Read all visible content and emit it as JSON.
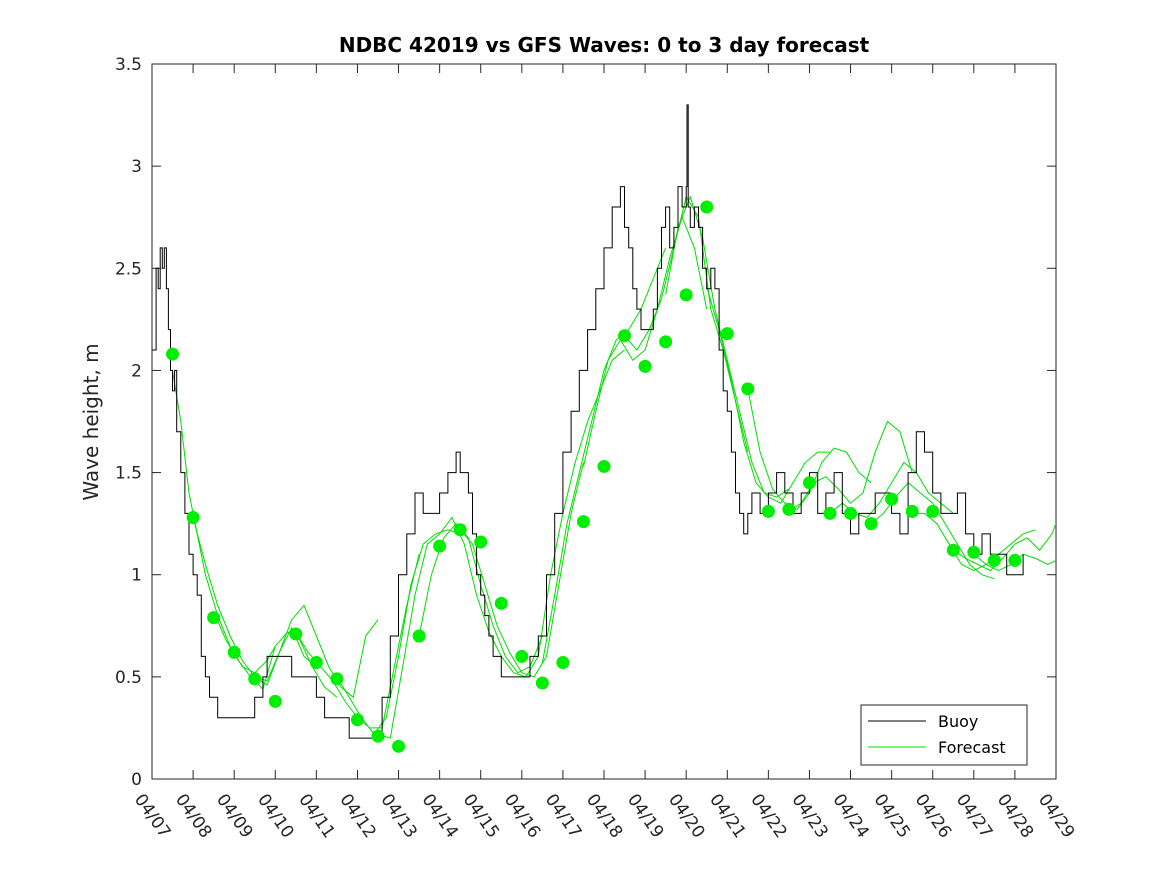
{
  "chart_data": {
    "type": "line",
    "title": "NDBC 42019 vs GFS Waves: 0 to 3 day forecast",
    "xlabel": "",
    "ylabel": "Wave height, m",
    "ylim": [
      0,
      3.5
    ],
    "yticks": [
      0,
      0.5,
      1,
      1.5,
      2,
      2.5,
      3,
      3.5
    ],
    "ytick_labels": [
      "0",
      "0.5",
      "1",
      "1.5",
      "2",
      "2.5",
      "3",
      "3.5"
    ],
    "xlim": [
      0,
      22
    ],
    "xtick_labels": [
      "04/07",
      "04/08",
      "04/09",
      "04/10",
      "04/11",
      "04/12",
      "04/13",
      "04/14",
      "04/15",
      "04/16",
      "04/17",
      "04/18",
      "04/19",
      "04/20",
      "04/21",
      "04/22",
      "04/23",
      "04/24",
      "04/25",
      "04/26",
      "04/27",
      "04/28",
      "04/29"
    ],
    "x_unit_note": "x values are days after 04/07 00:00",
    "legend": {
      "position": "bottom-right",
      "entries": [
        {
          "label": "Buoy",
          "color": "#000000"
        },
        {
          "label": "Forecast",
          "color": "#00dd00"
        }
      ]
    },
    "series": [
      {
        "name": "Buoy",
        "color": "#000000",
        "x": [
          0,
          0.1,
          0.15,
          0.2,
          0.25,
          0.3,
          0.35,
          0.4,
          0.45,
          0.5,
          0.55,
          0.6,
          0.7,
          0.8,
          0.9,
          1.0,
          1.1,
          1.2,
          1.3,
          1.4,
          1.5,
          1.6,
          1.7,
          1.8,
          1.9,
          2.0,
          2.2,
          2.4,
          2.5,
          2.6,
          2.7,
          2.8,
          3.0,
          3.2,
          3.4,
          3.5,
          3.6,
          3.8,
          4.0,
          4.2,
          4.4,
          4.6,
          4.8,
          5.0,
          5.2,
          5.4,
          5.6,
          5.8,
          6.0,
          6.2,
          6.4,
          6.6,
          6.8,
          7.0,
          7.2,
          7.4,
          7.5,
          7.6,
          7.7,
          7.8,
          7.9,
          8.0,
          8.1,
          8.2,
          8.3,
          8.4,
          8.5,
          8.6,
          8.8,
          9.0,
          9.2,
          9.4,
          9.6,
          9.8,
          10.0,
          10.2,
          10.4,
          10.6,
          10.8,
          11.0,
          11.2,
          11.4,
          11.5,
          11.6,
          11.7,
          11.8,
          11.9,
          12.0,
          12.1,
          12.2,
          12.3,
          12.4,
          12.5,
          12.6,
          12.7,
          12.8,
          12.9,
          13.0,
          13.02,
          13.05,
          13.1,
          13.2,
          13.3,
          13.4,
          13.5,
          13.6,
          13.7,
          13.8,
          13.9,
          14.0,
          14.1,
          14.2,
          14.3,
          14.4,
          14.5,
          14.6,
          14.8,
          15.0,
          15.2,
          15.4,
          15.6,
          15.8,
          16.0,
          16.2,
          16.4,
          16.6,
          16.8,
          17.0,
          17.2,
          17.4,
          17.6,
          17.8,
          18.0,
          18.2,
          18.4,
          18.6,
          18.8,
          19.0,
          19.2,
          19.4,
          19.6,
          19.8,
          20.0,
          20.2,
          20.4,
          20.6,
          20.8,
          21.0,
          21.2
        ],
        "y": [
          2.1,
          2.5,
          2.4,
          2.6,
          2.5,
          2.6,
          2.4,
          2.2,
          2.0,
          1.9,
          2.0,
          1.7,
          1.5,
          1.3,
          1.1,
          1.0,
          0.9,
          0.6,
          0.5,
          0.4,
          0.4,
          0.3,
          0.3,
          0.3,
          0.3,
          0.3,
          0.3,
          0.3,
          0.4,
          0.4,
          0.5,
          0.6,
          0.6,
          0.6,
          0.5,
          0.5,
          0.5,
          0.5,
          0.4,
          0.3,
          0.3,
          0.3,
          0.2,
          0.2,
          0.2,
          0.2,
          0.4,
          0.7,
          1.0,
          1.2,
          1.4,
          1.3,
          1.3,
          1.4,
          1.5,
          1.6,
          1.5,
          1.5,
          1.4,
          1.2,
          1.0,
          0.9,
          0.8,
          0.7,
          0.6,
          0.6,
          0.5,
          0.5,
          0.5,
          0.5,
          0.6,
          0.7,
          1.0,
          1.3,
          1.6,
          1.8,
          2.0,
          2.2,
          2.4,
          2.6,
          2.8,
          2.9,
          2.7,
          2.6,
          2.4,
          2.3,
          2.2,
          2.2,
          2.2,
          2.3,
          2.5,
          2.7,
          2.8,
          2.6,
          2.7,
          2.9,
          2.8,
          2.9,
          3.3,
          2.8,
          2.7,
          2.8,
          2.7,
          2.5,
          2.4,
          2.5,
          2.4,
          2.1,
          1.9,
          1.8,
          1.6,
          1.4,
          1.3,
          1.2,
          1.3,
          1.4,
          1.3,
          1.4,
          1.5,
          1.4,
          1.3,
          1.4,
          1.5,
          1.3,
          1.4,
          1.5,
          1.3,
          1.2,
          1.3,
          1.3,
          1.4,
          1.4,
          1.3,
          1.2,
          1.5,
          1.7,
          1.6,
          1.4,
          1.3,
          1.3,
          1.4,
          1.2,
          1.1,
          1.2,
          1.1,
          1.1,
          1.0,
          1.0,
          1.1
        ]
      }
    ],
    "forecast_lines": [
      {
        "x": [
          0.5,
          0.7,
          0.9,
          1.1,
          1.3,
          1.6,
          1.9,
          2.2,
          2.5,
          2.8,
          3.0
        ],
        "y": [
          2.0,
          1.75,
          1.4,
          1.2,
          1.0,
          0.8,
          0.65,
          0.55,
          0.52,
          0.58,
          0.65
        ]
      },
      {
        "x": [
          1.0,
          1.3,
          1.6,
          1.9,
          2.2,
          2.5,
          2.8,
          3.1,
          3.4,
          3.7,
          4.0
        ],
        "y": [
          1.28,
          1.05,
          0.85,
          0.7,
          0.58,
          0.5,
          0.48,
          0.62,
          0.74,
          0.6,
          0.55
        ]
      },
      {
        "x": [
          1.5,
          1.8,
          2.1,
          2.4,
          2.7,
          3.0,
          3.3,
          3.6,
          3.9,
          4.2,
          4.5
        ],
        "y": [
          0.82,
          0.68,
          0.58,
          0.5,
          0.44,
          0.65,
          0.72,
          0.68,
          0.55,
          0.45,
          0.4
        ]
      },
      {
        "x": [
          2.5,
          2.8,
          3.1,
          3.4,
          3.7,
          4.0,
          4.3,
          4.6,
          4.9,
          5.2,
          5.5
        ],
        "y": [
          0.5,
          0.46,
          0.62,
          0.78,
          0.85,
          0.7,
          0.55,
          0.45,
          0.4,
          0.7,
          0.78
        ]
      },
      {
        "x": [
          3.5,
          3.8,
          4.1,
          4.4,
          4.7,
          5.0,
          5.3,
          5.6,
          5.9,
          6.2,
          6.5
        ],
        "y": [
          0.72,
          0.62,
          0.55,
          0.48,
          0.38,
          0.3,
          0.25,
          0.25,
          0.55,
          0.85,
          1.1
        ]
      },
      {
        "x": [
          4.5,
          4.8,
          5.1,
          5.4,
          5.7,
          6.0,
          6.3,
          6.6,
          6.9,
          7.2,
          7.5
        ],
        "y": [
          0.5,
          0.4,
          0.3,
          0.22,
          0.3,
          0.6,
          0.95,
          1.15,
          1.2,
          1.22,
          1.2
        ]
      },
      {
        "x": [
          5.5,
          5.8,
          6.1,
          6.4,
          6.7,
          7.0,
          7.3,
          7.6,
          7.9,
          8.2,
          8.5
        ],
        "y": [
          0.22,
          0.2,
          0.55,
          0.9,
          1.15,
          1.2,
          1.28,
          1.15,
          0.9,
          0.72,
          0.6
        ]
      },
      {
        "x": [
          6.5,
          6.8,
          7.1,
          7.4,
          7.7,
          8.0,
          8.3,
          8.6,
          8.9,
          9.2,
          9.5
        ],
        "y": [
          0.7,
          1.0,
          1.18,
          1.25,
          1.18,
          0.95,
          0.75,
          0.6,
          0.52,
          0.55,
          0.7
        ]
      },
      {
        "x": [
          7.5,
          7.8,
          8.1,
          8.4,
          8.7,
          9.0,
          9.3,
          9.6,
          9.9,
          10.2,
          10.5
        ],
        "y": [
          1.22,
          1.15,
          0.95,
          0.75,
          0.62,
          0.52,
          0.5,
          0.6,
          0.95,
          1.3,
          1.55
        ]
      },
      {
        "x": [
          8.5,
          8.8,
          9.1,
          9.4,
          9.7,
          10.0,
          10.3,
          10.6,
          10.9,
          11.2,
          11.5
        ],
        "y": [
          0.6,
          0.52,
          0.5,
          0.6,
          1.0,
          1.3,
          1.55,
          1.75,
          1.9,
          2.05,
          2.1
        ]
      },
      {
        "x": [
          9.5,
          9.8,
          10.1,
          10.4,
          10.7,
          11.0,
          11.3,
          11.6,
          11.9,
          12.2,
          12.5
        ],
        "y": [
          0.57,
          0.9,
          1.25,
          1.5,
          1.75,
          2.0,
          2.15,
          2.2,
          2.3,
          2.45,
          2.6
        ]
      },
      {
        "x": [
          10.5,
          10.8,
          11.1,
          11.4,
          11.7,
          12.0,
          12.3,
          12.6,
          12.9,
          13.2,
          13.5
        ],
        "y": [
          1.53,
          1.8,
          2.05,
          2.15,
          2.05,
          2.1,
          2.3,
          2.55,
          2.75,
          2.6,
          2.3
        ]
      },
      {
        "x": [
          11.5,
          11.8,
          12.1,
          12.4,
          12.7,
          13.0,
          13.3,
          13.6,
          13.9,
          14.2,
          14.5
        ],
        "y": [
          2.17,
          2.1,
          2.2,
          2.35,
          2.6,
          2.85,
          2.75,
          2.3,
          2.1,
          1.85,
          1.6
        ]
      },
      {
        "x": [
          12.5,
          12.8,
          13.1,
          13.4,
          13.7,
          14.0,
          14.3,
          14.6,
          14.9,
          15.2,
          15.5
        ],
        "y": [
          2.37,
          2.7,
          2.85,
          2.65,
          2.3,
          2.05,
          1.8,
          1.55,
          1.4,
          1.38,
          1.42
        ]
      },
      {
        "x": [
          13.5,
          13.8,
          14.1,
          14.4,
          14.7,
          15.0,
          15.3,
          15.6,
          15.9,
          16.2,
          16.5
        ],
        "y": [
          2.41,
          2.2,
          1.95,
          1.65,
          1.45,
          1.38,
          1.35,
          1.45,
          1.55,
          1.6,
          1.6
        ]
      },
      {
        "x": [
          14.5,
          14.8,
          15.1,
          15.4,
          15.7,
          16.0,
          16.3,
          16.6,
          16.9,
          17.2,
          17.5
        ],
        "y": [
          1.91,
          1.6,
          1.42,
          1.35,
          1.32,
          1.4,
          1.55,
          1.62,
          1.6,
          1.5,
          1.45
        ]
      },
      {
        "x": [
          15.5,
          15.8,
          16.1,
          16.4,
          16.7,
          17.0,
          17.3,
          17.6,
          17.9,
          18.2,
          18.5
        ],
        "y": [
          1.31,
          1.35,
          1.45,
          1.48,
          1.42,
          1.35,
          1.4,
          1.6,
          1.75,
          1.7,
          1.5
        ]
      },
      {
        "x": [
          16.5,
          16.8,
          17.1,
          17.4,
          17.7,
          18.0,
          18.3,
          18.6,
          18.9,
          19.2,
          19.5
        ],
        "y": [
          1.3,
          1.35,
          1.3,
          1.28,
          1.35,
          1.45,
          1.55,
          1.5,
          1.4,
          1.35,
          1.3
        ]
      },
      {
        "x": [
          17.5,
          17.8,
          18.1,
          18.4,
          18.7,
          19.0,
          19.3,
          19.6,
          19.9,
          20.2,
          20.5
        ],
        "y": [
          1.25,
          1.3,
          1.38,
          1.45,
          1.4,
          1.35,
          1.25,
          1.15,
          1.05,
          1.0,
          0.98
        ]
      },
      {
        "x": [
          18.5,
          18.8,
          19.1,
          19.4,
          19.7,
          20.0,
          20.3,
          20.6,
          20.9,
          21.2,
          21.5
        ],
        "y": [
          1.3,
          1.3,
          1.25,
          1.15,
          1.05,
          1.02,
          1.05,
          1.1,
          1.15,
          1.2,
          1.22
        ]
      },
      {
        "x": [
          19.5,
          19.8,
          20.1,
          20.4,
          20.7,
          21.0,
          21.3,
          21.6,
          21.9,
          22.0
        ],
        "y": [
          1.12,
          1.08,
          1.05,
          1.02,
          1.08,
          1.15,
          1.18,
          1.12,
          1.2,
          1.25
        ]
      },
      {
        "x": [
          20.0,
          20.3,
          20.6,
          20.9,
          21.2,
          21.5,
          21.8,
          22.0
        ],
        "y": [
          1.1,
          1.05,
          1.02,
          1.05,
          1.1,
          1.08,
          1.05,
          1.07
        ]
      }
    ],
    "forecast_points": {
      "name": "Forecast",
      "color": "#00ee00",
      "x": [
        0.5,
        1.0,
        1.5,
        2.0,
        2.5,
        3.0,
        3.5,
        4.0,
        4.5,
        5.0,
        5.5,
        6.0,
        6.5,
        7.0,
        7.5,
        8.0,
        8.5,
        9.0,
        9.5,
        10.0,
        10.5,
        11.0,
        11.5,
        12.0,
        12.5,
        13.0,
        13.5,
        14.0,
        14.5,
        15.0,
        15.5,
        16.0,
        16.5,
        17.0,
        17.5,
        18.0,
        18.5,
        19.0,
        19.5,
        20.0,
        20.5,
        21.0
      ],
      "y": [
        2.08,
        1.28,
        0.79,
        0.62,
        0.49,
        0.38,
        0.71,
        0.57,
        0.49,
        0.29,
        0.21,
        0.16,
        0.7,
        1.14,
        1.22,
        1.16,
        0.86,
        0.6,
        0.47,
        0.57,
        1.26,
        1.53,
        2.17,
        2.02,
        2.14,
        2.37,
        2.8,
        2.18,
        1.91,
        1.31,
        1.32,
        1.45,
        1.3,
        1.3,
        1.25,
        1.37,
        1.31,
        1.31,
        1.12,
        1.11,
        1.07,
        1.07
      ]
    }
  }
}
